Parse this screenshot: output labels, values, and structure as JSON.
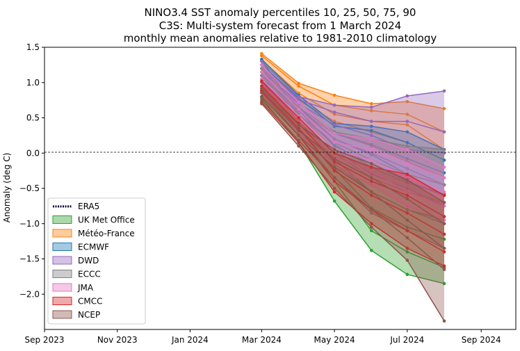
{
  "chart_data": {
    "type": "area",
    "title": [
      "NINO3.4 SST anomaly percentiles 10, 25, 50, 75, 90",
      "C3S: Multi-system forecast from 1 March 2024",
      "monthly mean anomalies relative to 1981-2010 climatology"
    ],
    "xlabel": "",
    "ylabel": "Anomaly (deg C)",
    "x_ticks": [
      "Sep 2023",
      "Nov 2023",
      "Jan 2024",
      "Mar 2024",
      "May 2024",
      "Jul 2024",
      "Sep 2024"
    ],
    "x_range": [
      "2023-09-01",
      "2024-09-30"
    ],
    "y_ticks": [
      "1.5",
      "1.0",
      "0.5",
      "0.0",
      "−0.5",
      "−1.0",
      "−1.5",
      "−2.0"
    ],
    "y_tick_values": [
      1.5,
      1.0,
      0.5,
      0.0,
      -0.5,
      -1.0,
      -1.5,
      -2.0
    ],
    "ylim": [
      -2.5,
      1.5
    ],
    "zero_line": true,
    "grid": false,
    "legend_position": "lower-left",
    "x": [
      "2024-03-01",
      "2024-04-01",
      "2024-05-01",
      "2024-06-01",
      "2024-07-01",
      "2024-08-01"
    ],
    "series": [
      {
        "name": "ERA5",
        "color": "#000033",
        "style": "dotted",
        "p10": [],
        "p25": [],
        "p50": [],
        "p75": [],
        "p90": []
      },
      {
        "name": "UK Met Office",
        "color": "#2ca02c",
        "p10": [
          0.78,
          0.15,
          -0.68,
          -1.38,
          -1.72,
          -1.85
        ],
        "p25": [
          0.85,
          0.25,
          -0.4,
          -1.1,
          -1.4,
          -1.62
        ],
        "p50": [
          0.95,
          0.35,
          -0.22,
          -0.78,
          -1.05,
          -1.22
        ],
        "p75": [
          1.05,
          0.45,
          -0.08,
          -0.55,
          -0.8,
          -0.95
        ],
        "p90": [
          1.32,
          0.55,
          0.12,
          -0.2,
          -0.42,
          -0.58
        ]
      },
      {
        "name": "Météo-France",
        "color": "#ff7f0e",
        "p10": [
          1.1,
          0.6,
          0.28,
          0.1,
          -0.12,
          -0.35
        ],
        "p25": [
          1.25,
          0.75,
          0.45,
          0.3,
          0.15,
          -0.1
        ],
        "p50": [
          1.32,
          0.85,
          0.55,
          0.45,
          0.4,
          0.05
        ],
        "p75": [
          1.38,
          0.95,
          0.68,
          0.6,
          0.55,
          0.3
        ],
        "p90": [
          1.41,
          0.99,
          0.82,
          0.7,
          0.73,
          0.63
        ]
      },
      {
        "name": "ECMWF",
        "color": "#1f77b4",
        "p10": [
          0.95,
          0.6,
          0.1,
          -0.15,
          -0.4,
          -0.6
        ],
        "p25": [
          1.05,
          0.65,
          0.2,
          -0.02,
          -0.3,
          -0.45
        ],
        "p50": [
          1.15,
          0.72,
          0.28,
          0.12,
          -0.08,
          -0.28
        ],
        "p75": [
          1.25,
          0.78,
          0.38,
          0.32,
          0.15,
          -0.1
        ],
        "p90": [
          1.33,
          0.82,
          0.42,
          0.38,
          0.3,
          0.05
        ]
      },
      {
        "name": "DWD",
        "color": "#9467bd",
        "p10": [
          0.9,
          0.55,
          0.05,
          -0.3,
          -0.5,
          -0.75
        ],
        "p25": [
          1.0,
          0.62,
          0.2,
          0.0,
          -0.22,
          -0.45
        ],
        "p50": [
          1.1,
          0.7,
          0.4,
          0.25,
          0.05,
          0.0
        ],
        "p75": [
          1.2,
          0.76,
          0.58,
          0.45,
          0.45,
          0.3
        ],
        "p90": [
          1.3,
          0.8,
          0.68,
          0.65,
          0.81,
          0.88
        ]
      },
      {
        "name": "ECCC",
        "color": "#7f7f7f",
        "p10": [
          0.8,
          0.25,
          -0.35,
          -0.85,
          -1.1,
          -1.35
        ],
        "p25": [
          0.9,
          0.35,
          -0.15,
          -0.55,
          -0.8,
          -1.0
        ],
        "p50": [
          1.0,
          0.45,
          0.0,
          -0.35,
          -0.55,
          -0.7
        ],
        "p75": [
          1.1,
          0.55,
          0.15,
          -0.1,
          -0.3,
          -0.45
        ],
        "p90": [
          1.2,
          0.65,
          0.3,
          0.2,
          0.1,
          0.05
        ]
      },
      {
        "name": "JMA",
        "color": "#e377c2",
        "p10": [
          0.85,
          0.3,
          -0.2,
          -0.45,
          -0.75,
          -0.95
        ],
        "p25": [
          0.95,
          0.42,
          -0.05,
          -0.25,
          -0.55,
          -0.75
        ],
        "p50": [
          1.05,
          0.52,
          0.05,
          -0.1,
          -0.35,
          -0.55
        ],
        "p75": [
          1.15,
          0.62,
          0.15,
          0.05,
          -0.15,
          -0.35
        ],
        "p90": [
          1.25,
          0.72,
          0.28,
          0.2,
          0.05,
          -0.2
        ]
      },
      {
        "name": "CMCC",
        "color": "#d62728",
        "p10": [
          0.72,
          0.15,
          -0.55,
          -1.0,
          -1.35,
          -1.6
        ],
        "p25": [
          0.8,
          0.25,
          -0.4,
          -0.8,
          -1.1,
          -1.4
        ],
        "p50": [
          0.88,
          0.35,
          -0.25,
          -0.6,
          -0.85,
          -1.15
        ],
        "p75": [
          0.95,
          0.42,
          -0.12,
          -0.4,
          -0.6,
          -0.9
        ],
        "p90": [
          1.02,
          0.5,
          0.0,
          -0.2,
          -0.3,
          -0.6
        ]
      },
      {
        "name": "NCEP",
        "color": "#8c564b",
        "p10": [
          0.7,
          0.1,
          -0.5,
          -1.05,
          -1.52,
          -2.38
        ],
        "p25": [
          0.75,
          0.18,
          -0.35,
          -0.8,
          -1.2,
          -1.65
        ],
        "p50": [
          0.8,
          0.25,
          -0.2,
          -0.55,
          -0.95,
          -1.35
        ],
        "p75": [
          0.86,
          0.32,
          -0.08,
          -0.35,
          -0.65,
          -1.0
        ],
        "p90": [
          0.92,
          0.4,
          0.05,
          -0.15,
          -0.38,
          -0.7
        ]
      }
    ]
  }
}
